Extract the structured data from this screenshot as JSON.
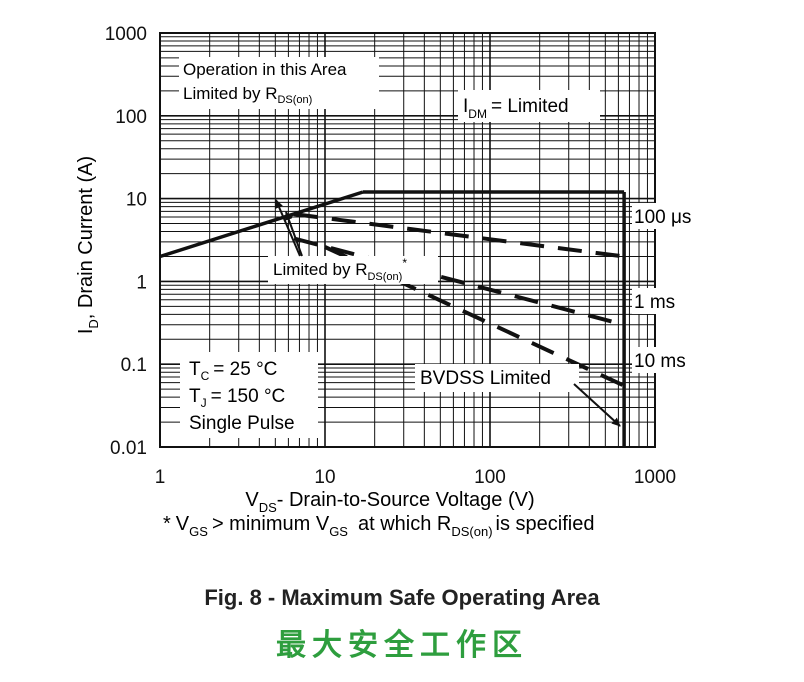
{
  "chart_data": {
    "type": "line",
    "scale": {
      "x": "log",
      "y": "log"
    },
    "xlim": [
      1,
      1000
    ],
    "ylim": [
      0.01,
      1000
    ],
    "x_ticks": [
      "1",
      "10",
      "100",
      "1000"
    ],
    "y_ticks": [
      "1000",
      "100",
      "10",
      "1",
      "0.1",
      "0.01"
    ],
    "y_tick_values": [
      1000,
      100,
      10,
      1,
      0.1,
      0.01
    ],
    "x_tick_values": [
      1,
      10,
      100,
      1000
    ],
    "grid": true,
    "xlabel": {
      "main": "V",
      "sub": "DS",
      "rest": "- Drain-to-Source Voltage (V)"
    },
    "ylabel": {
      "main": "I",
      "sub": "D",
      "rest": ", Drain Current (A)"
    },
    "footnote": {
      "star": "*",
      "v": "V",
      "gs1": "GS",
      "gt": "> minimum V",
      "gs2": "GS",
      "at": "at which R",
      "dson": "DS(on)",
      "tail": "is specified"
    },
    "series": [
      {
        "style": "solid",
        "points": [
          [
            1,
            2
          ],
          [
            17,
            12
          ]
        ]
      },
      {
        "style": "solid",
        "points": [
          [
            17,
            12
          ],
          [
            650,
            12
          ]
        ]
      },
      {
        "style": "solid",
        "points": [
          [
            650,
            12
          ],
          [
            650,
            0.01
          ]
        ]
      },
      {
        "style": "dashed",
        "points": [
          [
            6.5,
            6.5
          ],
          [
            650,
            2
          ]
        ]
      },
      {
        "style": "dashed",
        "points": [
          [
            6.5,
            3.3
          ],
          [
            650,
            0.3
          ]
        ]
      },
      {
        "style": "dashed",
        "points": [
          [
            10,
            2.6
          ],
          [
            650,
            0.055
          ]
        ]
      }
    ],
    "annotations": {
      "rds_region": {
        "line1": "Operation in this Area",
        "line2": "Limited by R",
        "sub": "DS(on)"
      },
      "idm": {
        "main": "I",
        "sub": "DM",
        "rest": "= Limited"
      },
      "rds_arrow": {
        "main": "Limited by R",
        "sub": "DS(on)",
        "sup": "*"
      },
      "label_100us": "100 μs",
      "label_1ms": "1 ms",
      "label_10ms": "10 ms",
      "bvdss": "BVDSS Limited",
      "conditions": {
        "tc": "T",
        "tc_sub": "C",
        "tc_val": "= 25 °C",
        "tj": "T",
        "tj_sub": "J",
        "tj_val": "= 150 °C",
        "pulse": "Single Pulse"
      }
    }
  },
  "figure_title": "Fig. 8 - Maximum Safe Operating Area",
  "chinese_caption": "最大安全工作区"
}
